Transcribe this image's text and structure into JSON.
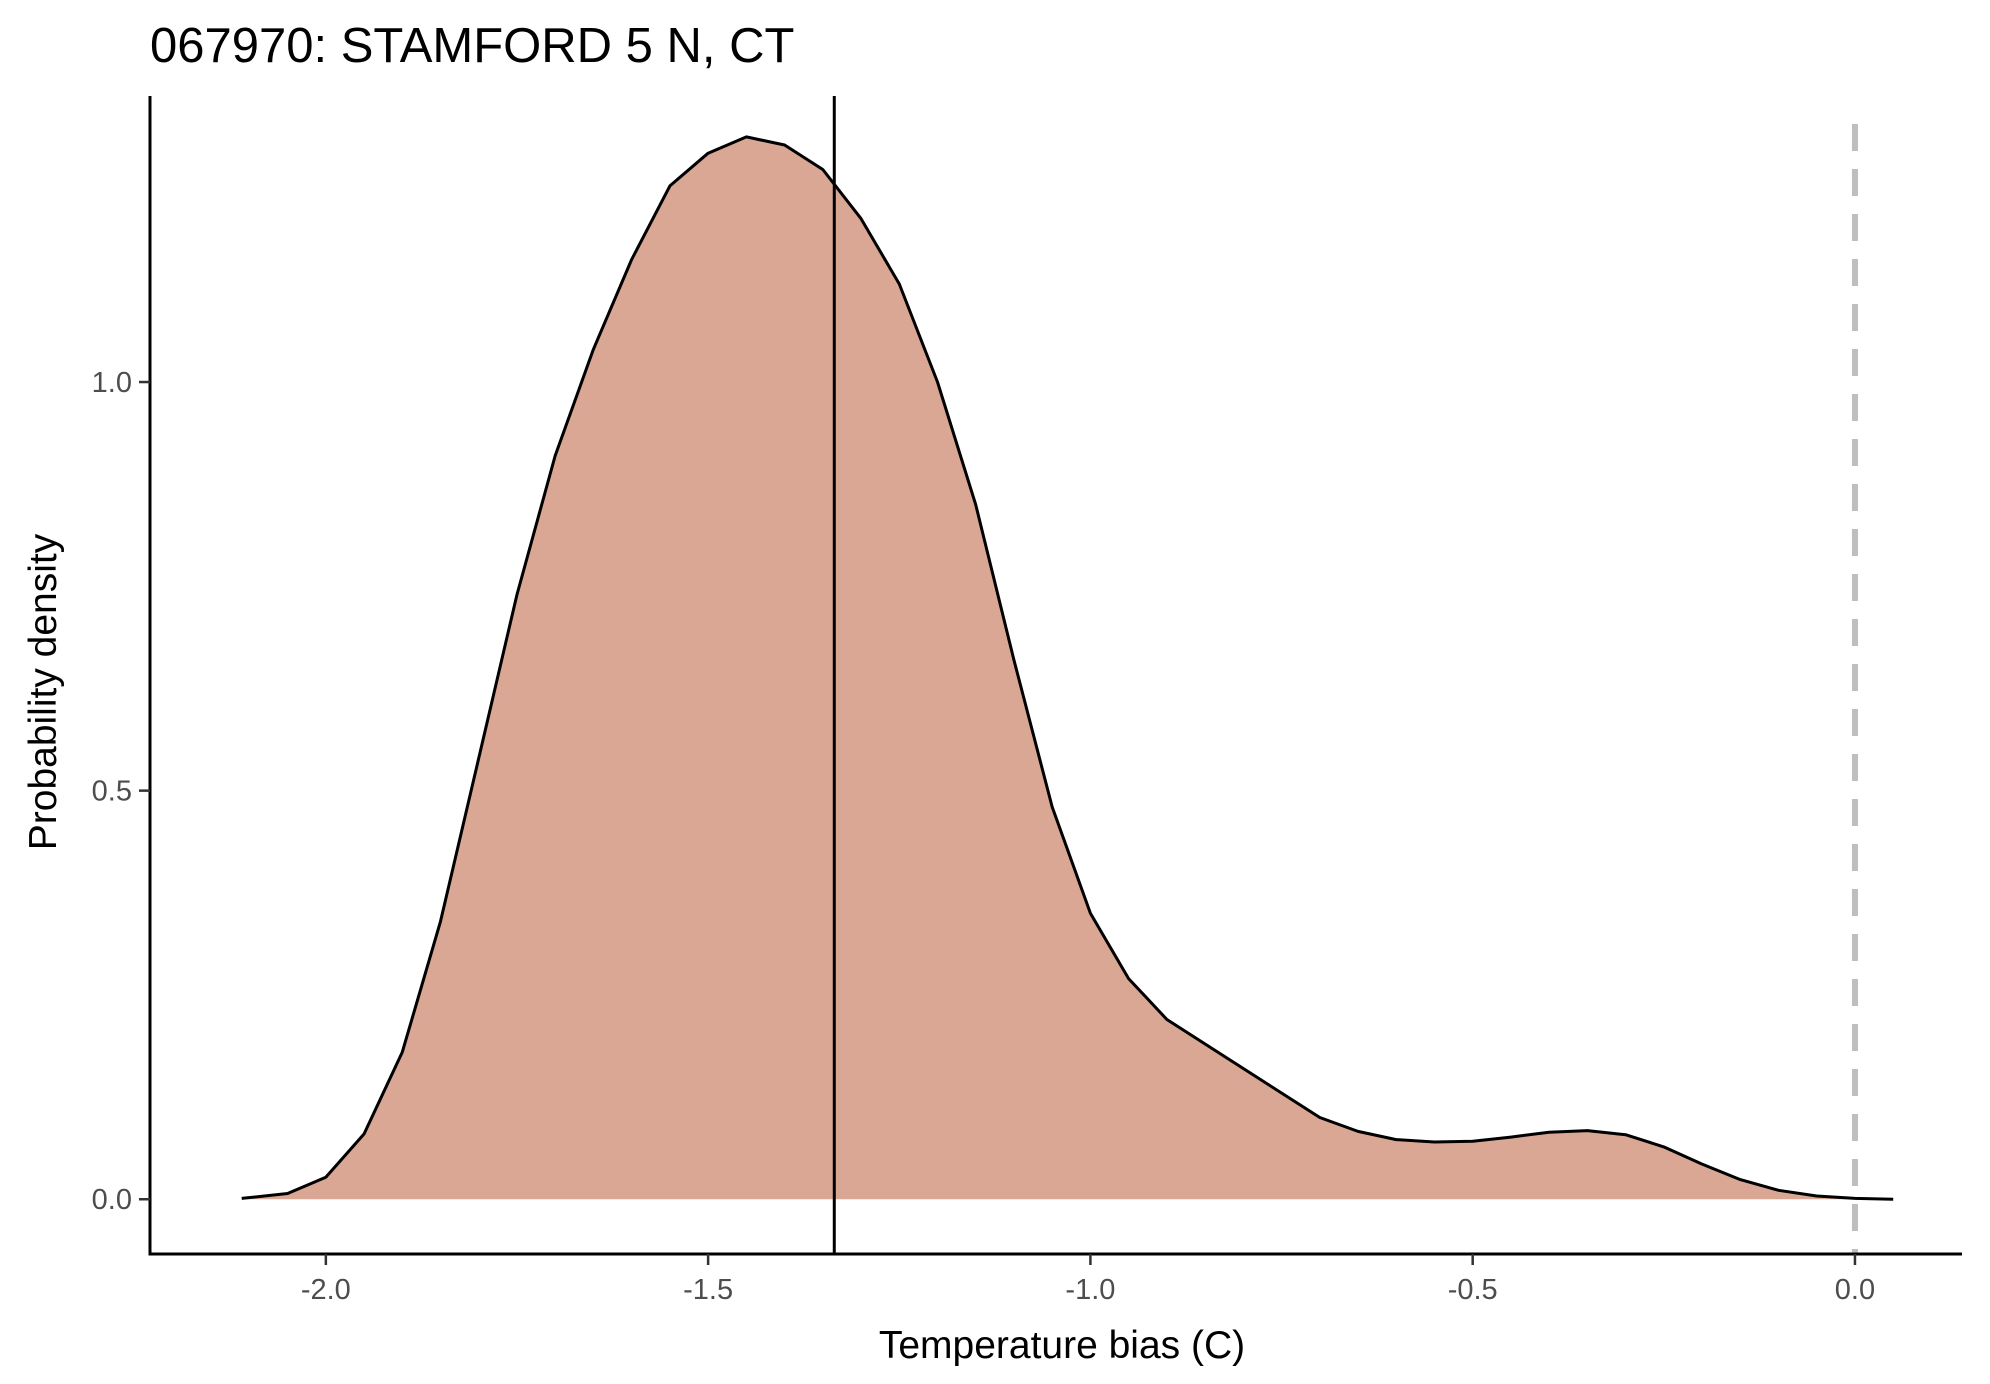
{
  "chart_data": {
    "type": "area",
    "title": "067970: STAMFORD 5 N, CT",
    "xlabel": "Temperature bias (C)",
    "ylabel": "Probability density",
    "xlim": [
      -2.23,
      0.14
    ],
    "ylim": [
      -0.067,
      1.35
    ],
    "x_ticks": [
      -2.0,
      -1.5,
      -1.0,
      -0.5,
      0.0
    ],
    "x_tick_labels": [
      "-2.0",
      "-1.5",
      "-1.0",
      "-0.5",
      "0.0"
    ],
    "y_ticks": [
      0.0,
      0.5,
      1.0
    ],
    "y_tick_labels": [
      "0.0",
      "0.5",
      "1.0"
    ],
    "grid": false,
    "legend": "none",
    "fill_color": "#d9a794",
    "line_color": "#000000",
    "reference_lines": [
      {
        "x": -1.335,
        "style": "solid",
        "color": "#000000"
      },
      {
        "x": 0.0,
        "style": "dashed",
        "color": "#bebebe"
      }
    ],
    "series": [
      {
        "x": [
          -2.11,
          -2.05,
          -2.0,
          -1.95,
          -1.9,
          -1.85,
          -1.8,
          -1.75,
          -1.7,
          -1.65,
          -1.6,
          -1.55,
          -1.5,
          -1.45,
          -1.4,
          -1.35,
          -1.3,
          -1.25,
          -1.2,
          -1.15,
          -1.1,
          -1.05,
          -1.0,
          -0.95,
          -0.9,
          -0.85,
          -0.8,
          -0.75,
          -0.7,
          -0.65,
          -0.6,
          -0.55,
          -0.5,
          -0.45,
          -0.4,
          -0.35,
          -0.3,
          -0.25,
          -0.2,
          -0.15,
          -0.1,
          -0.05,
          0.0,
          0.05
        ],
        "y": [
          0.001,
          0.007,
          0.027,
          0.08,
          0.18,
          0.34,
          0.54,
          0.74,
          0.91,
          1.04,
          1.15,
          1.24,
          1.28,
          1.3,
          1.29,
          1.26,
          1.2,
          1.12,
          1.0,
          0.85,
          0.66,
          0.48,
          0.35,
          0.27,
          0.22,
          0.19,
          0.16,
          0.13,
          0.1,
          0.083,
          0.073,
          0.07,
          0.071,
          0.076,
          0.082,
          0.084,
          0.079,
          0.064,
          0.043,
          0.024,
          0.011,
          0.004,
          0.001,
          0.0
        ]
      }
    ]
  }
}
